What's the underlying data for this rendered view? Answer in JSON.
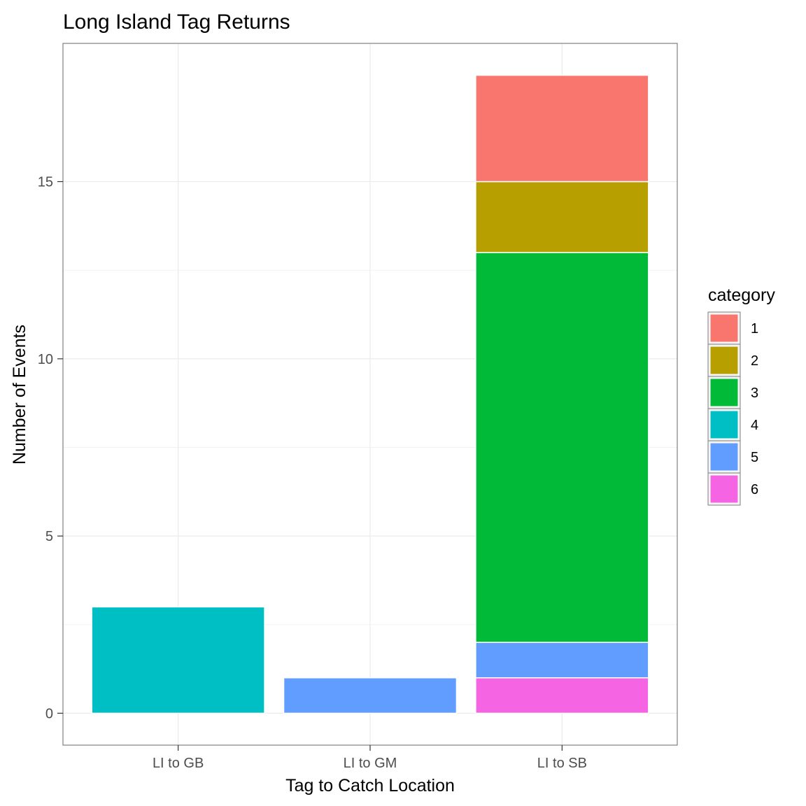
{
  "chart_data": {
    "type": "bar",
    "stacked": true,
    "title": "Long Island Tag Returns",
    "xlabel": "Tag to Catch Location",
    "ylabel": "Number of Events",
    "categories": [
      "LI to GB",
      "LI to GM",
      "LI to SB"
    ],
    "ylim": [
      -0.9,
      18.9
    ],
    "yticks": [
      0,
      5,
      10,
      15
    ],
    "grid": true,
    "legend": {
      "title": "category",
      "position": "right"
    },
    "series": [
      {
        "name": "1",
        "color": "#F8766D",
        "values": [
          0,
          0,
          3
        ]
      },
      {
        "name": "2",
        "color": "#B79F00",
        "values": [
          0,
          0,
          2
        ]
      },
      {
        "name": "3",
        "color": "#00BA38",
        "values": [
          0,
          0,
          11
        ]
      },
      {
        "name": "4",
        "color": "#00BFC4",
        "values": [
          3,
          0,
          0
        ]
      },
      {
        "name": "5",
        "color": "#619CFF",
        "values": [
          0,
          1,
          1
        ]
      },
      {
        "name": "6",
        "color": "#F564E3",
        "values": [
          0,
          0,
          1
        ]
      }
    ],
    "stack_order_bottom_to_top": [
      "6",
      "5",
      "4",
      "3",
      "2",
      "1"
    ]
  },
  "colors": {
    "panel_border": "#7f7f7f",
    "gridline": "#ebebeb",
    "tick": "#333333",
    "bar_outline": "#ffffff"
  }
}
